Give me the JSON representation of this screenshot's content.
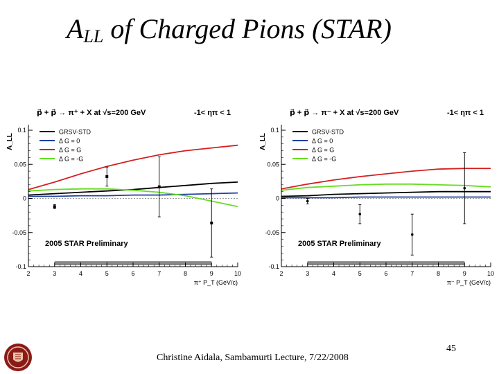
{
  "slide": {
    "title_main": "A",
    "title_sub": "LL",
    "title_rest": " of Charged Pions (STAR)",
    "footer": "Christine Aidala, Sambamurti Lecture, 7/22/2008",
    "page_number": "45",
    "seal_icon": "university-seal-icon"
  },
  "chart_data": [
    {
      "type": "line",
      "title_left": "p⃗ + p⃗ → π⁺ + X at √s=200 GeV",
      "title_right": "-1< ηπ < 1",
      "xlabel": "π⁺ P_T (GeV/c)",
      "ylabel": "A_LL",
      "xlim": [
        2,
        10
      ],
      "ylim": [
        -0.1,
        0.1
      ],
      "xticks": [
        2,
        3,
        4,
        5,
        6,
        7,
        8,
        9,
        10
      ],
      "yticks": [
        -0.1,
        -0.05,
        0,
        0.05,
        0.1
      ],
      "ytick_labels": [
        "-0.1",
        "-0.05",
        "0",
        "0.05",
        "0.1"
      ],
      "annotation": "2005 STAR Preliminary",
      "legend": [
        {
          "name": "GRSV-STD",
          "color": "#000000"
        },
        {
          "name": "Δ G = 0",
          "color": "#1f3f9f"
        },
        {
          "name": "Δ G = G",
          "color": "#d42020"
        },
        {
          "name": "Δ G = -G",
          "color": "#66dd22"
        }
      ],
      "series": [
        {
          "name": "GRSV-STD",
          "color": "#000000",
          "x": [
            2,
            3,
            4,
            5,
            6,
            7,
            8,
            9,
            10
          ],
          "y": [
            0.005,
            0.007,
            0.009,
            0.011,
            0.013,
            0.016,
            0.019,
            0.022,
            0.024
          ]
        },
        {
          "name": "Δ G = 0",
          "color": "#1f3f9f",
          "x": [
            2,
            3,
            4,
            5,
            6,
            7,
            8,
            9,
            10
          ],
          "y": [
            0.003,
            0.003,
            0.004,
            0.004,
            0.005,
            0.005,
            0.006,
            0.007,
            0.008
          ]
        },
        {
          "name": "Δ G = G",
          "color": "#d42020",
          "x": [
            2,
            3,
            4,
            5,
            6,
            7,
            8,
            9,
            10
          ],
          "y": [
            0.013,
            0.024,
            0.036,
            0.047,
            0.056,
            0.064,
            0.07,
            0.074,
            0.078
          ]
        },
        {
          "name": "Δ G = -G",
          "color": "#66dd22",
          "x": [
            2,
            3,
            4,
            5,
            6,
            7,
            8,
            9,
            10
          ],
          "y": [
            0.011,
            0.013,
            0.014,
            0.014,
            0.012,
            0.009,
            0.004,
            -0.004,
            -0.012
          ]
        }
      ],
      "points": [
        {
          "x": 3.0,
          "y": -0.012,
          "err": 0.003
        },
        {
          "x": 5.0,
          "y": 0.032,
          "err": 0.014
        },
        {
          "x": 7.0,
          "y": 0.017,
          "err": 0.044
        },
        {
          "x": 9.0,
          "y": -0.036,
          "err": 0.05
        }
      ],
      "systematic_band": {
        "x": [
          3,
          9
        ],
        "y": [
          -0.098,
          -0.092
        ]
      }
    },
    {
      "type": "line",
      "title_left": "p⃗ + p⃗ → π⁻ + X at √s=200 GeV",
      "title_right": "-1< ηπ < 1",
      "xlabel": "π⁻ P_T (GeV/c)",
      "ylabel": "A_LL",
      "xlim": [
        2,
        10
      ],
      "ylim": [
        -0.1,
        0.1
      ],
      "xticks": [
        2,
        3,
        4,
        5,
        6,
        7,
        8,
        9,
        10
      ],
      "yticks": [
        -0.1,
        -0.05,
        0,
        0.05,
        0.1
      ],
      "ytick_labels": [
        "-0.1",
        "-0.05",
        "0",
        "0.05",
        "0.1"
      ],
      "annotation": "2005 STAR Preliminary",
      "legend": [
        {
          "name": "GRSV-STD",
          "color": "#000000"
        },
        {
          "name": "Δ G = 0",
          "color": "#1f3f9f"
        },
        {
          "name": "Δ G = G",
          "color": "#d42020"
        },
        {
          "name": "Δ G = -G",
          "color": "#66dd22"
        }
      ],
      "series": [
        {
          "name": "GRSV-STD",
          "color": "#000000",
          "x": [
            2,
            3,
            4,
            5,
            6,
            7,
            8,
            9,
            10
          ],
          "y": [
            0.003,
            0.004,
            0.006,
            0.007,
            0.008,
            0.009,
            0.01,
            0.01,
            0.01
          ]
        },
        {
          "name": "Δ G = 0",
          "color": "#1f3f9f",
          "x": [
            2,
            3,
            4,
            5,
            6,
            7,
            8,
            9,
            10
          ],
          "y": [
            0.001,
            0.001,
            0.001,
            0.002,
            0.002,
            0.002,
            0.002,
            0.002,
            0.002
          ]
        },
        {
          "name": "Δ G = G",
          "color": "#d42020",
          "x": [
            2,
            3,
            4,
            5,
            6,
            7,
            8,
            9,
            10
          ],
          "y": [
            0.014,
            0.021,
            0.027,
            0.032,
            0.036,
            0.04,
            0.043,
            0.044,
            0.044
          ]
        },
        {
          "name": "Δ G = -G",
          "color": "#66dd22",
          "x": [
            2,
            3,
            4,
            5,
            6,
            7,
            8,
            9,
            10
          ],
          "y": [
            0.012,
            0.016,
            0.018,
            0.02,
            0.021,
            0.021,
            0.02,
            0.019,
            0.017
          ]
        }
      ],
      "points": [
        {
          "x": 3.0,
          "y": -0.004,
          "err": 0.004
        },
        {
          "x": 5.0,
          "y": -0.023,
          "err": 0.014
        },
        {
          "x": 7.0,
          "y": -0.053,
          "err": 0.03
        },
        {
          "x": 9.0,
          "y": 0.015,
          "err": 0.052
        }
      ],
      "systematic_band": {
        "x": [
          3,
          9
        ],
        "y": [
          -0.098,
          -0.092
        ]
      }
    }
  ]
}
